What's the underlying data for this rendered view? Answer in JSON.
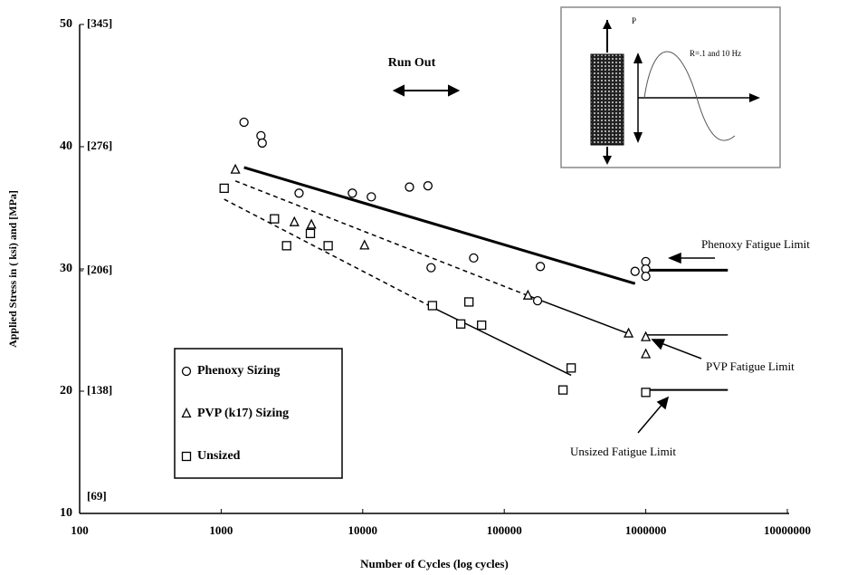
{
  "chart_data": {
    "type": "scatter",
    "x_label": "Number of Cycles (log cycles)",
    "y_label": "Applied Stress in ( ksi) and [MPa]",
    "log_x": true,
    "xlim": [
      100,
      10000000
    ],
    "xticks": [
      100,
      1000,
      10000,
      100000,
      1000000,
      10000000
    ],
    "ylim": [
      10,
      50
    ],
    "yticks": [
      10,
      20,
      30,
      40,
      50
    ],
    "y2lim": [
      69,
      345
    ],
    "y2ticks": [
      {
        "value": 345,
        "label": "[345]"
      },
      {
        "value": 276,
        "label": "[276]"
      },
      {
        "value": 206,
        "label": "[206]"
      },
      {
        "value": 138,
        "label": "[138]"
      },
      {
        "value": 69,
        "label": "[69]"
      }
    ],
    "legend": "lower-left",
    "series": [
      {
        "name": "Phenoxy Sizing",
        "marker": "circle",
        "color": "#000000",
        "x": [
          1450,
          1910,
          1950,
          3550,
          8450,
          11500,
          21400,
          28900,
          30400,
          60800,
          180000,
          172000,
          840000,
          1000000,
          1000000,
          1000000
        ],
        "values": [
          42.0,
          40.9,
          40.3,
          36.2,
          36.2,
          35.9,
          36.7,
          36.8,
          30.1,
          30.9,
          30.2,
          27.4,
          29.8,
          30.6,
          30.0,
          29.4
        ]
      },
      {
        "name": "PVP (k17) Sizing",
        "marker": "triangle",
        "color": "#000000",
        "x": [
          1260,
          3290,
          4340,
          10300,
          147000,
          756000,
          1000000,
          1000000
        ],
        "values": [
          38.1,
          33.8,
          33.6,
          31.9,
          27.8,
          24.7,
          24.4,
          23.0
        ]
      },
      {
        "name": "Unsized",
        "marker": "square",
        "color": "#000000",
        "x": [
          1050,
          2380,
          2900,
          4270,
          5700,
          31100,
          56300,
          49300,
          69200,
          297000,
          260000,
          1000000
        ],
        "values": [
          36.6,
          34.1,
          31.9,
          32.9,
          31.9,
          27.0,
          27.3,
          25.5,
          25.4,
          21.9,
          20.1,
          19.9
        ]
      }
    ],
    "fits": [
      {
        "x": [
          1450,
          840000
        ],
        "values": [
          38.3,
          28.8
        ],
        "dash": false,
        "width": 3
      },
      {
        "x": [
          1260,
          141000
        ],
        "values": [
          37.2,
          27.9
        ],
        "dash": true,
        "width": 1.5
      },
      {
        "x": [
          141000,
          756000
        ],
        "values": [
          27.9,
          24.7
        ],
        "dash": false,
        "width": 1.5
      },
      {
        "x": [
          1050,
          31800
        ],
        "values": [
          35.7,
          26.8
        ],
        "dash": true,
        "width": 1.5
      },
      {
        "x": [
          31800,
          297000
        ],
        "values": [
          26.8,
          21.3
        ],
        "dash": false,
        "width": 1.5
      }
    ],
    "limits": [
      {
        "label": "Phenoxy  Fatigue Limit",
        "x": [
          1000000,
          3800000
        ],
        "value": 29.9,
        "width": 3
      },
      {
        "label": "PVP Fatigue Limit",
        "x": [
          1000000,
          3800000
        ],
        "value": 24.6,
        "width": 1.5
      },
      {
        "label": "Unsized Fatigue Limit",
        "x": [
          1000000,
          3800000
        ],
        "value": 20.1,
        "width": 2
      }
    ],
    "run_out": "Run Out",
    "inset": {
      "load": "P",
      "condition": "R=.1 and 10 Hz"
    }
  }
}
